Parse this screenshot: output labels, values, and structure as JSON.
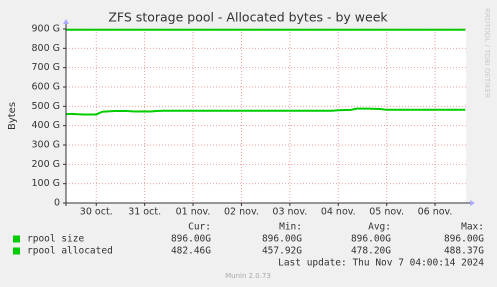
{
  "chart_data": {
    "type": "line",
    "title": "ZFS storage pool - Allocated bytes - by week",
    "y_label": "Bytes",
    "side_note": "RRDTOOL / TOBI OETIKER",
    "categories": [
      null,
      null,
      null,
      null,
      null,
      "30 oct.",
      null,
      null,
      null,
      null,
      null,
      null,
      null,
      "31 oct.",
      null,
      null,
      null,
      null,
      null,
      null,
      null,
      "01 nov.",
      null,
      null,
      null,
      null,
      null,
      null,
      null,
      "02 nov.",
      null,
      null,
      null,
      null,
      null,
      null,
      null,
      "03 nov.",
      null,
      null,
      null,
      null,
      null,
      null,
      null,
      "04 nov.",
      null,
      null,
      null,
      null,
      null,
      null,
      null,
      "05 nov.",
      null,
      null,
      null,
      null,
      null,
      null,
      null,
      "06 nov.",
      null,
      null,
      null,
      null,
      null
    ],
    "series": [
      {
        "name": "rpool size",
        "color": "#00cc00",
        "values": [
          896,
          896,
          896,
          896,
          896,
          896,
          896,
          896,
          896,
          896,
          896,
          896,
          896,
          896,
          896,
          896,
          896,
          896,
          896,
          896,
          896,
          896,
          896,
          896,
          896,
          896,
          896,
          896,
          896,
          896,
          896,
          896,
          896,
          896,
          896,
          896,
          896,
          896,
          896,
          896,
          896,
          896,
          896,
          896,
          896,
          896,
          896,
          896,
          896,
          896,
          896,
          896,
          896,
          896,
          896,
          896,
          896,
          896,
          896,
          896,
          896,
          896,
          896,
          896,
          896,
          896,
          896
        ]
      },
      {
        "name": "rpool allocated",
        "color": "#00cc00",
        "values": [
          460,
          461,
          459,
          458,
          458,
          458,
          472,
          474,
          476,
          476,
          476,
          474,
          473,
          474,
          473,
          476,
          477,
          477,
          477,
          477,
          477,
          477,
          477,
          477,
          477,
          477,
          477,
          477,
          477,
          477,
          477,
          477,
          477,
          477,
          477,
          477,
          477,
          477,
          477,
          477,
          477,
          477,
          477,
          477,
          477,
          480,
          481,
          481,
          488,
          488.37,
          488,
          487,
          486,
          482,
          482,
          482,
          482,
          482,
          482,
          482,
          482,
          482,
          482,
          482,
          482,
          482,
          482.46
        ]
      }
    ],
    "ylim": [
      0,
      900
    ],
    "yticks": [
      0,
      {
        "value": 100,
        "label": "100 G"
      },
      {
        "value": 200,
        "label": "200 G"
      },
      {
        "value": 300,
        "label": "300 G"
      },
      {
        "value": 400,
        "label": "400 G"
      },
      {
        "value": 500,
        "label": "500 G"
      },
      {
        "value": 600,
        "label": "600 G"
      },
      {
        "value": 700,
        "label": "700 G"
      },
      {
        "value": 800,
        "label": "800 G"
      },
      {
        "value": 900,
        "label": "900 G"
      }
    ],
    "grid": true,
    "stats": {
      "headers": [
        "Cur:",
        "Min:",
        "Avg:",
        "Max:"
      ],
      "rows": [
        [
          "896.00G",
          "896.00G",
          "896.00G",
          "896.00G"
        ],
        [
          "482.46G",
          "457.92G",
          "478.20G",
          "488.37G"
        ]
      ]
    },
    "last_update": "Last update: Thu Nov  7 04:00:14 2024",
    "footer": "Munin 2.0.73"
  }
}
